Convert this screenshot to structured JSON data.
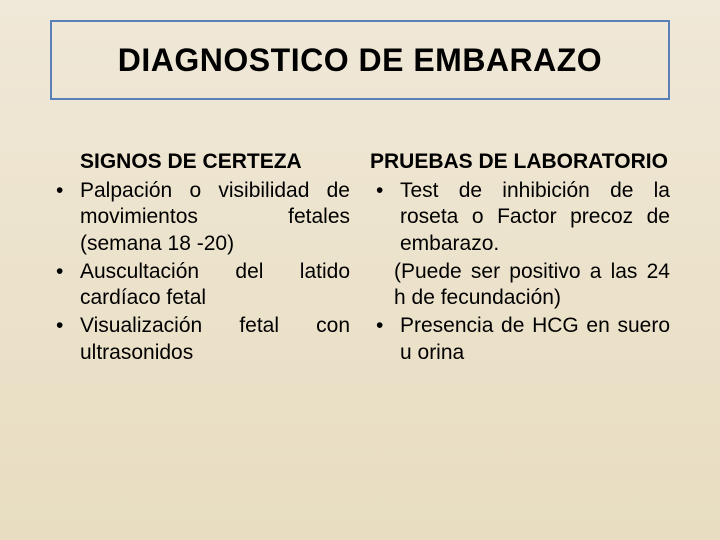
{
  "slide": {
    "title": "DIAGNOSTICO DE EMBARAZO",
    "background_gradient": {
      "from": "#f0e8d8",
      "to": "#e8ddc0"
    },
    "title_border_color": "#5b7fb8",
    "text_color": "#000000",
    "title_fontsize": 32,
    "body_fontsize": 21
  },
  "left": {
    "heading": "SIGNOS DE CERTEZA",
    "items": [
      "Palpación o visibilidad de movimientos fetales (semana 18 -20)",
      "Auscultación del latido cardíaco fetal",
      "Visualización fetal con ultrasonidos"
    ]
  },
  "right": {
    "heading": "PRUEBAS DE LABORATORIO",
    "items": [
      "Test de inhibición de la roseta o Factor precoz de embarazo.",
      "Presencia de HCG en suero u orina"
    ],
    "paren_after_first": "(Puede ser positivo a las 24 h de fecundación)"
  }
}
